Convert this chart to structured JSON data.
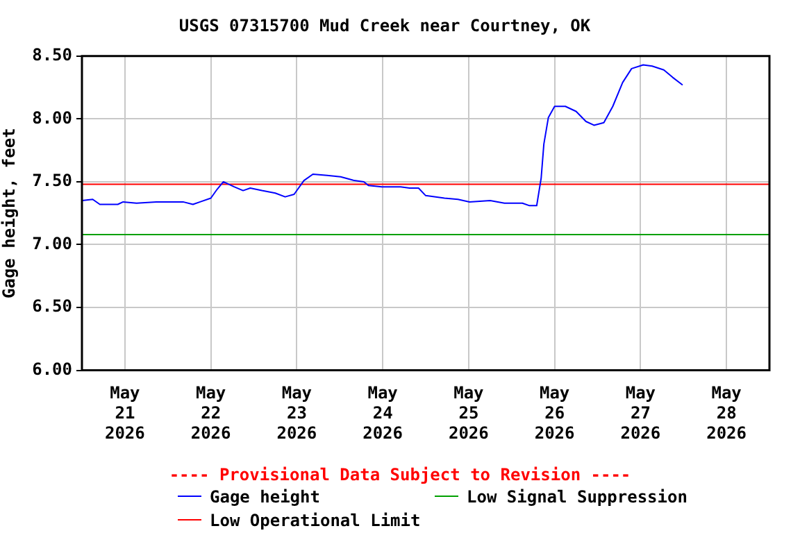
{
  "chart_data": {
    "type": "line",
    "title": "USGS 07315700 Mud Creek near Courtney, OK",
    "ylabel": "Gage height, feet",
    "annotations": [
      "---- Provisional Data Subject to Revision ----"
    ],
    "series": [
      {
        "name": "Gage height",
        "color": "#0000ff",
        "x": [
          "2026-05-20T12:00",
          "2026-05-20T15:00",
          "2026-05-20T17:00",
          "2026-05-20T22:00",
          "2026-05-20T23:30",
          "2026-05-21T03:15",
          "2026-05-21T08:45",
          "2026-05-21T11:15",
          "2026-05-21T16:15",
          "2026-05-21T19:00",
          "2026-05-21T21:00",
          "2026-05-22T00:00",
          "2026-05-22T01:45",
          "2026-05-22T03:30",
          "2026-05-22T06:30",
          "2026-05-22T09:00",
          "2026-05-22T11:00",
          "2026-05-22T14:15",
          "2026-05-22T18:00",
          "2026-05-22T20:45",
          "2026-05-22T23:15",
          "2026-05-23T02:00",
          "2026-05-23T04:30",
          "2026-05-23T08:30",
          "2026-05-23T12:15",
          "2026-05-23T16:00",
          "2026-05-23T18:45",
          "2026-05-23T20:00",
          "2026-05-23T23:45",
          "2026-05-24T05:00",
          "2026-05-24T07:30",
          "2026-05-24T10:00",
          "2026-05-24T12:00",
          "2026-05-24T17:15",
          "2026-05-24T21:00",
          "2026-05-25T00:15",
          "2026-05-25T06:00",
          "2026-05-25T10:00",
          "2026-05-25T15:00",
          "2026-05-25T17:00",
          "2026-05-25T19:00",
          "2026-05-25T20:15",
          "2026-05-25T21:00",
          "2026-05-25T22:15",
          "2026-05-26T00:00",
          "2026-05-26T03:00",
          "2026-05-26T06:00",
          "2026-05-26T08:45",
          "2026-05-26T11:00",
          "2026-05-26T13:45",
          "2026-05-26T16:15",
          "2026-05-26T19:00",
          "2026-05-26T21:30",
          "2026-05-27T00:45",
          "2026-05-27T03:15",
          "2026-05-27T06:30",
          "2026-05-27T09:00",
          "2026-05-27T11:45"
        ],
        "values": [
          7.35,
          7.36,
          7.32,
          7.32,
          7.34,
          7.33,
          7.34,
          7.34,
          7.34,
          7.32,
          7.34,
          7.37,
          7.44,
          7.5,
          7.46,
          7.43,
          7.45,
          7.43,
          7.41,
          7.38,
          7.4,
          7.51,
          7.56,
          7.55,
          7.54,
          7.51,
          7.5,
          7.47,
          7.46,
          7.46,
          7.45,
          7.45,
          7.39,
          7.37,
          7.36,
          7.34,
          7.35,
          7.33,
          7.33,
          7.31,
          7.31,
          7.53,
          7.8,
          8.01,
          8.1,
          8.1,
          8.06,
          7.98,
          7.95,
          7.97,
          8.1,
          8.29,
          8.4,
          8.43,
          8.42,
          8.39,
          8.33,
          8.27
        ]
      }
    ],
    "ref_lines": [
      {
        "axis": "y",
        "value": 7.08,
        "label": "Low Signal Suppression",
        "color": "#00a000"
      },
      {
        "axis": "y",
        "value": 7.48,
        "label": "Low Operational Limit",
        "color": "#ff0000"
      }
    ],
    "xlim": [
      "2026-05-20T12:00",
      "2026-05-28T12:00"
    ],
    "xticks": [
      {
        "value": "2026-05-21",
        "label": "May 21 2026"
      },
      {
        "value": "2026-05-22",
        "label": "May 22 2026"
      },
      {
        "value": "2026-05-23",
        "label": "May 23 2026"
      },
      {
        "value": "2026-05-24",
        "label": "May 24 2026"
      },
      {
        "value": "2026-05-25",
        "label": "May 25 2026"
      },
      {
        "value": "2026-05-26",
        "label": "May 26 2026"
      },
      {
        "value": "2026-05-27",
        "label": "May 27 2026"
      },
      {
        "value": "2026-05-28",
        "label": "May 28 2026"
      }
    ],
    "ylim": [
      6.0,
      8.5
    ],
    "yticks": [
      {
        "value": 6.0,
        "label": "6.00"
      },
      {
        "value": 6.5,
        "label": "6.50"
      },
      {
        "value": 7.0,
        "label": "7.00"
      },
      {
        "value": 7.5,
        "label": "7.50"
      },
      {
        "value": 8.0,
        "label": "8.00"
      },
      {
        "value": 8.5,
        "label": "8.50"
      }
    ],
    "grid": true,
    "legend": "bottom",
    "marker": "none",
    "line_style": "solid"
  }
}
